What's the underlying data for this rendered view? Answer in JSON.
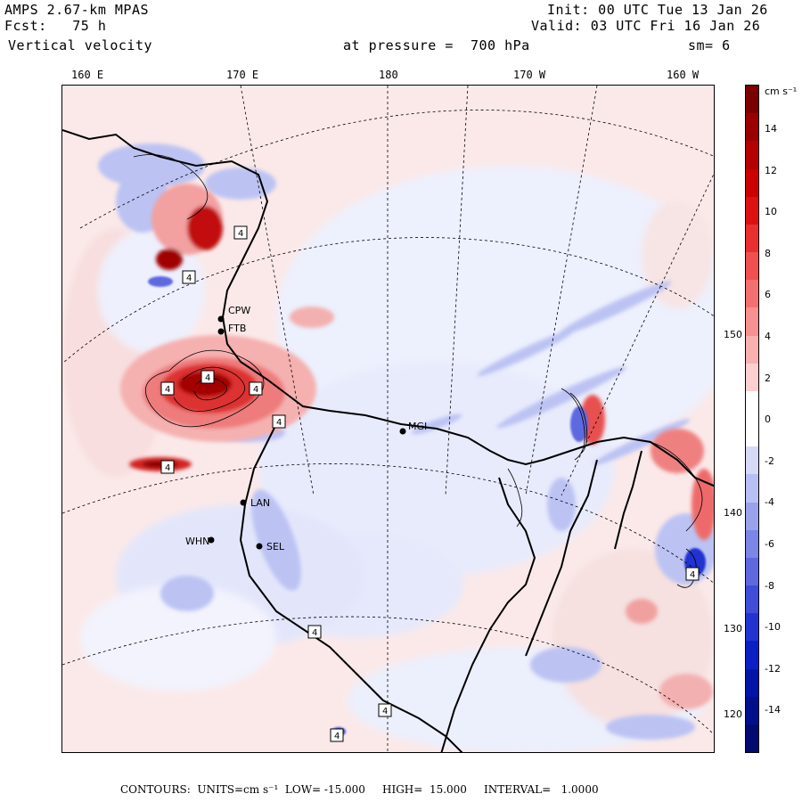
{
  "header": {
    "model": "AMPS 2.67-km MPAS",
    "forecast": "Fcst:   75 h",
    "field": "Vertical velocity",
    "pressure": "at pressure =  700 hPa",
    "init": "Init: 00 UTC Tue 13 Jan 26",
    "valid": "Valid: 03 UTC Fri 16 Jan 26",
    "smoothing": "sm= 6"
  },
  "longitude_labels": [
    "160 E",
    "170 E",
    "180",
    "170 W",
    "160 W"
  ],
  "latitude_labels": [
    "150 W",
    "140 W",
    "130 W",
    "120 W"
  ],
  "stations": [
    "CPW",
    "FTB",
    "LAN",
    "WHN",
    "SEL",
    "MGI"
  ],
  "highlow_markers": [
    "4",
    "4",
    "4",
    "4",
    "4",
    "4",
    "4",
    "4",
    "4",
    "4",
    "4"
  ],
  "colorbar": {
    "unit": "cm s⁻¹",
    "ticks": [
      "14",
      "12",
      "10",
      "8",
      "6",
      "4",
      "2",
      "0",
      "-2",
      "-4",
      "-6",
      "-8",
      "-10",
      "-12",
      "-14"
    ],
    "colors": [
      "#7a0000",
      "#9a0000",
      "#b50000",
      "#cc0000",
      "#dd1111",
      "#e83030",
      "#f05050",
      "#f47070",
      "#f79090",
      "#fab0b0",
      "#fcd0d0",
      "#ffffff",
      "#ffffff",
      "#d6daf7",
      "#b8bff2",
      "#9aa2ec",
      "#7c86e6",
      "#5e69df",
      "#404dd9",
      "#2233d0",
      "#0a1fc4",
      "#0015a8",
      "#00108c",
      "#000a70"
    ]
  },
  "footer": {
    "contours": "CONTOURS:  UNITS=cm s⁻¹  LOW= -15.000     HIGH=  15.000     INTERVAL=   1.0000"
  }
}
